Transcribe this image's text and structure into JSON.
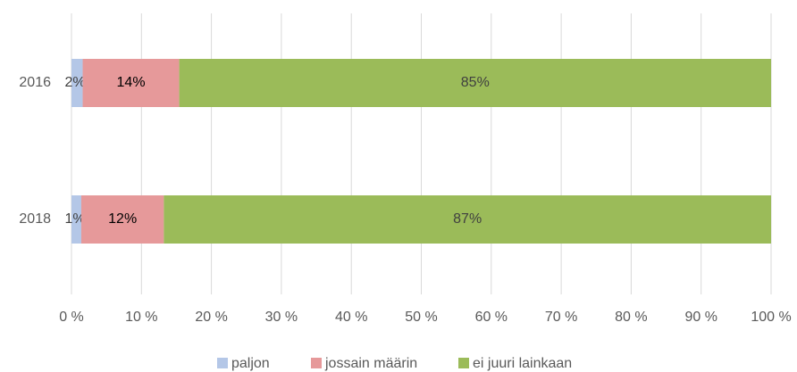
{
  "chart_data": {
    "type": "stacked-barh",
    "categories": [
      "2016",
      "2018"
    ],
    "series": [
      {
        "name": "paljon",
        "color": "#b4c7e7",
        "values": [
          1.6,
          1.4
        ],
        "value_labels": [
          "2%",
          "1%"
        ]
      },
      {
        "name": "jossain määrin",
        "color": "#e6999a",
        "values": [
          13.8,
          11.8
        ],
        "value_labels": [
          "14%",
          "12%"
        ]
      },
      {
        "name": "ei juuri lainkaan",
        "color": "#9bbb59",
        "values": [
          84.6,
          86.8
        ],
        "value_labels": [
          "85%",
          "87%"
        ]
      }
    ],
    "xlim": [
      0,
      100
    ],
    "xticks": [
      {
        "value": 0,
        "label": "0 %"
      },
      {
        "value": 10,
        "label": "10 %"
      },
      {
        "value": 20,
        "label": "20 %"
      },
      {
        "value": 30,
        "label": "30 %"
      },
      {
        "value": 40,
        "label": "40 %"
      },
      {
        "value": 50,
        "label": "50 %"
      },
      {
        "value": 60,
        "label": "60 %"
      },
      {
        "value": 70,
        "label": "70 %"
      },
      {
        "value": 80,
        "label": "80 %"
      },
      {
        "value": 90,
        "label": "90 %"
      },
      {
        "value": 100,
        "label": "100 %"
      }
    ],
    "grid": true
  }
}
